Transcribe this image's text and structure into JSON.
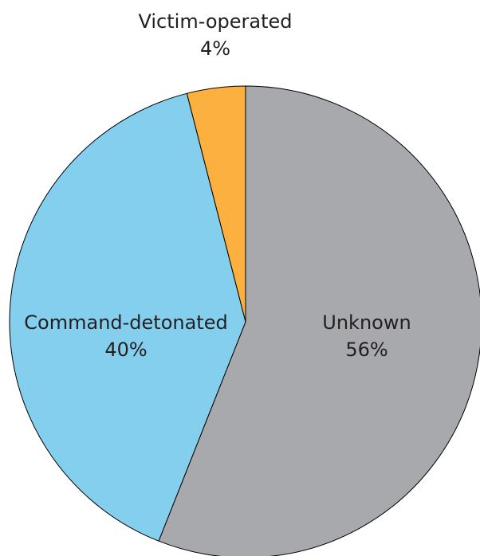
{
  "chart_data": {
    "type": "pie",
    "title": "",
    "start_angle_deg": 0,
    "direction": "clockwise",
    "slices": [
      {
        "label": "Unknown",
        "value": 56,
        "value_label": "56%",
        "color": "#a7a9ac"
      },
      {
        "label": "Command-detonated",
        "value": 40,
        "value_label": "40%",
        "color": "#85cfee"
      },
      {
        "label": "Victim-operated",
        "value": 4,
        "value_label": "4%",
        "color": "#fbb040"
      }
    ]
  }
}
